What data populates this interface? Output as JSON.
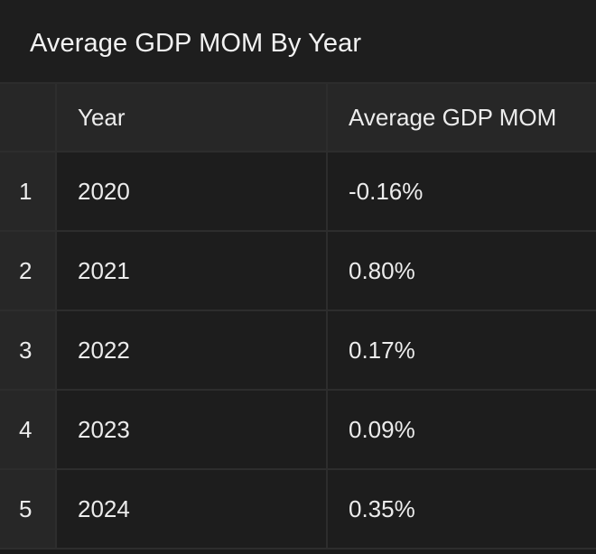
{
  "panel": {
    "title": "Average GDP MOM By Year"
  },
  "table": {
    "columns": [
      "",
      "Year",
      "Average GDP MOM"
    ],
    "rows": [
      {
        "index": "1",
        "year": "2020",
        "value": "-0.16%"
      },
      {
        "index": "2",
        "year": "2021",
        "value": "0.80%"
      },
      {
        "index": "3",
        "year": "2022",
        "value": "0.17%"
      },
      {
        "index": "4",
        "year": "2023",
        "value": "0.09%"
      },
      {
        "index": "5",
        "year": "2024",
        "value": "0.35%"
      }
    ]
  }
}
